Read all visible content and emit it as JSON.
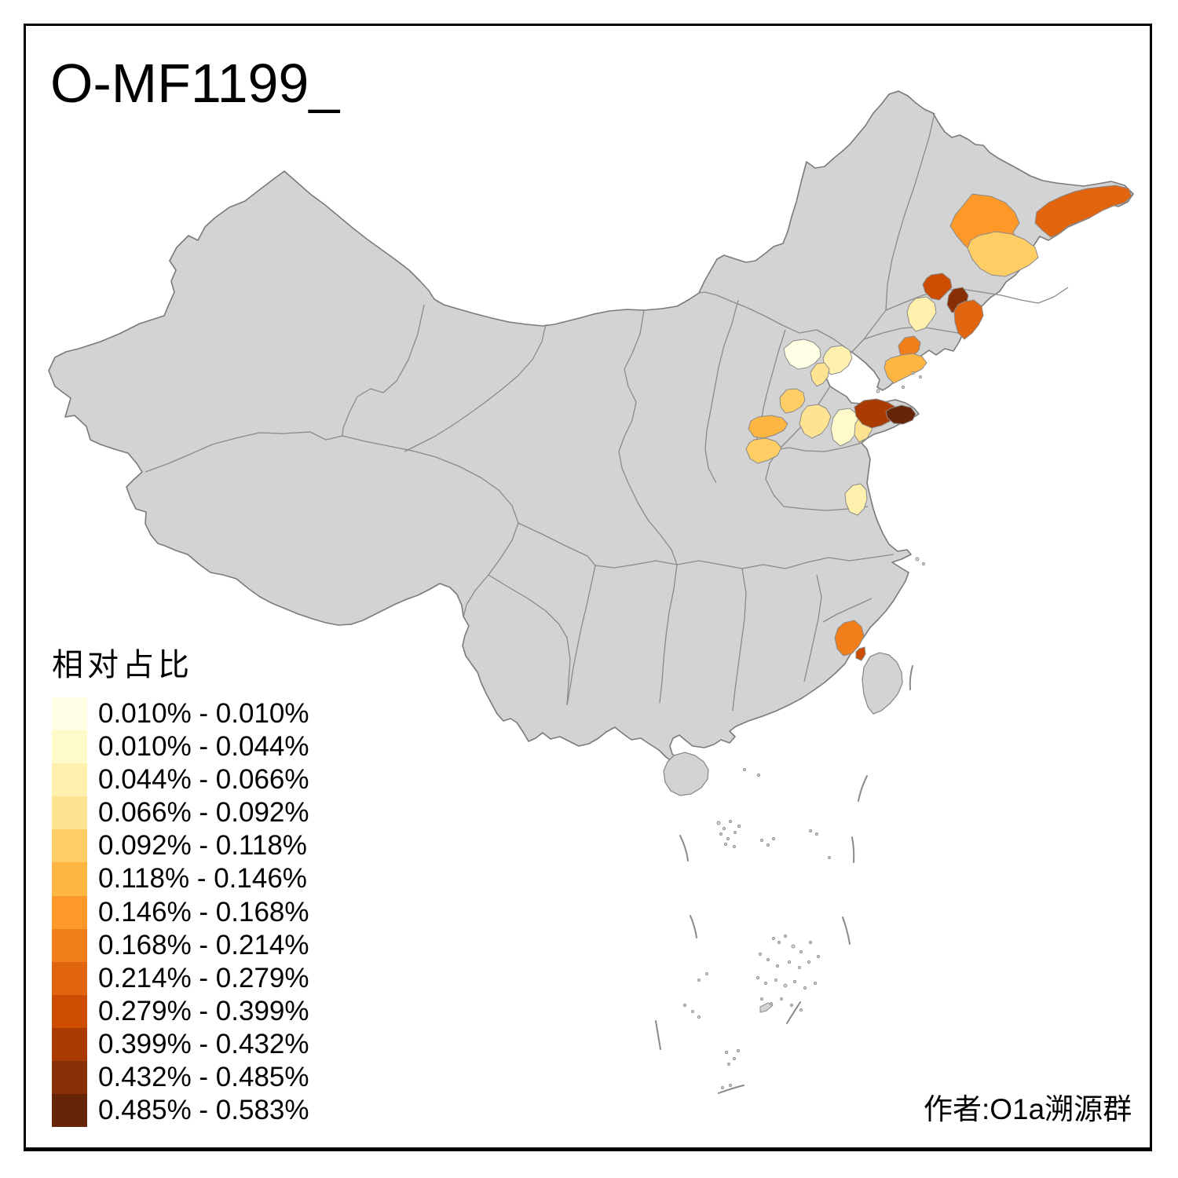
{
  "title": "O-MF1199_",
  "credit": "作者:O1a溯源群",
  "colors": {
    "background": "#FFFFFF",
    "land_base": "#D3D3D3",
    "country_outline": "#7A7A7A",
    "province_border": "#8A8A8A",
    "frame": "#000000"
  },
  "legend": {
    "title": "相对占比",
    "items": [
      {
        "label": "0.010% - 0.010%",
        "color": "#FFFFE5"
      },
      {
        "label": "0.010% - 0.044%",
        "color": "#FFFACA"
      },
      {
        "label": "0.044% - 0.066%",
        "color": "#FFF0AE"
      },
      {
        "label": "0.066% - 0.092%",
        "color": "#FEE391"
      },
      {
        "label": "0.092% - 0.118%",
        "color": "#FECE65"
      },
      {
        "label": "0.118% - 0.146%",
        "color": "#FEB642"
      },
      {
        "label": "0.146% - 0.168%",
        "color": "#FE9929"
      },
      {
        "label": "0.168% - 0.214%",
        "color": "#F27E1B"
      },
      {
        "label": "0.214% - 0.279%",
        "color": "#E1640E"
      },
      {
        "label": "0.279% - 0.399%",
        "color": "#CC4C02"
      },
      {
        "label": "0.399% - 0.432%",
        "color": "#AA3C03"
      },
      {
        "label": "0.432% - 0.485%",
        "color": "#882F05"
      },
      {
        "label": "0.485% - 0.583%",
        "color": "#662506"
      }
    ]
  },
  "map": {
    "country": "China",
    "regions": [
      {
        "id": "heilongjiang-west",
        "bin": 6
      },
      {
        "id": "heilongjiang-central",
        "bin": 4
      },
      {
        "id": "heilongjiang-northeast",
        "bin": 8
      },
      {
        "id": "jilin-west",
        "bin": 9
      },
      {
        "id": "jilin-center-dark",
        "bin": 11
      },
      {
        "id": "jilin-southeast",
        "bin": 8
      },
      {
        "id": "liaoning-north-pale",
        "bin": 2
      },
      {
        "id": "liaoning-dandong",
        "bin": 7
      },
      {
        "id": "liaodong-peninsula",
        "bin": 5
      },
      {
        "id": "beijing",
        "bin": 0
      },
      {
        "id": "hebei-northeast",
        "bin": 2
      },
      {
        "id": "tianjin",
        "bin": 3
      },
      {
        "id": "hebei-central",
        "bin": 4
      },
      {
        "id": "shanxi-east",
        "bin": 5
      },
      {
        "id": "shanxi-southeast",
        "bin": 4
      },
      {
        "id": "hebei-south",
        "bin": 3
      },
      {
        "id": "shandong-west",
        "bin": 1
      },
      {
        "id": "shandong-central",
        "bin": 3
      },
      {
        "id": "shandong-peninsula-west",
        "bin": 10
      },
      {
        "id": "shandong-peninsula-east",
        "bin": 12
      },
      {
        "id": "anhui-central",
        "bin": 2
      },
      {
        "id": "fujian-coast",
        "bin": 7
      },
      {
        "id": "fujian-coast-south",
        "bin": 9
      }
    ]
  },
  "chart_data": {
    "type": "choropleth_map",
    "title": "O-MF1199_",
    "region_scope": "China prefectures",
    "legend_title": "相对占比",
    "unit": "percent",
    "palette": "YlOrBr (13 steps)",
    "bins": [
      [
        0.01,
        0.01
      ],
      [
        0.01,
        0.044
      ],
      [
        0.044,
        0.066
      ],
      [
        0.066,
        0.092
      ],
      [
        0.092,
        0.118
      ],
      [
        0.118,
        0.146
      ],
      [
        0.146,
        0.168
      ],
      [
        0.168,
        0.214
      ],
      [
        0.214,
        0.279
      ],
      [
        0.279,
        0.399
      ],
      [
        0.399,
        0.432
      ],
      [
        0.432,
        0.485
      ],
      [
        0.485,
        0.583
      ]
    ],
    "highlighted_region_count": 23,
    "annotation": "作者:O1a溯源群"
  }
}
